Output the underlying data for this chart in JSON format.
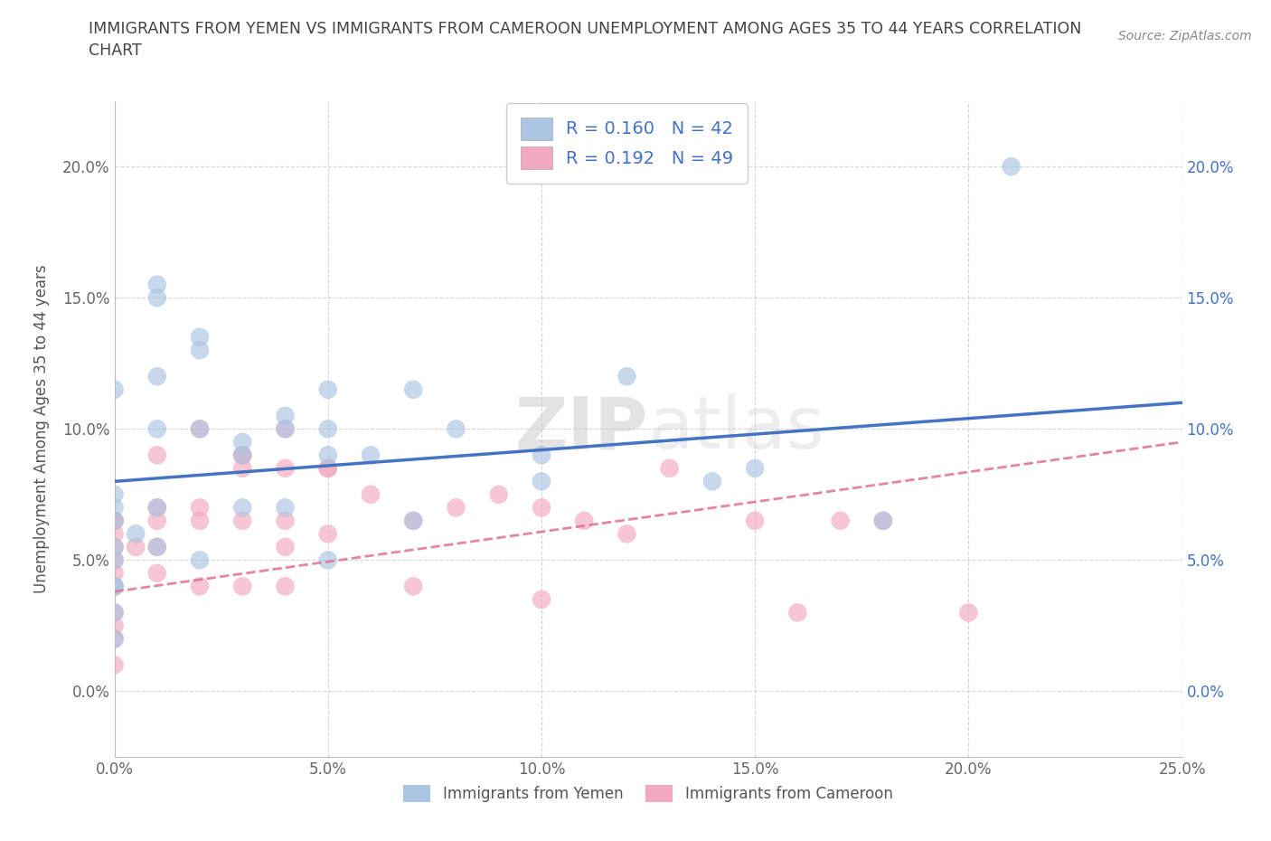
{
  "title": "IMMIGRANTS FROM YEMEN VS IMMIGRANTS FROM CAMEROON UNEMPLOYMENT AMONG AGES 35 TO 44 YEARS CORRELATION\nCHART",
  "source_text": "Source: ZipAtlas.com",
  "ylabel": "Unemployment Among Ages 35 to 44 years",
  "xlim": [
    0.0,
    0.25
  ],
  "ylim": [
    -0.025,
    0.225
  ],
  "yticks": [
    0.0,
    0.05,
    0.1,
    0.15,
    0.2
  ],
  "ytick_labels": [
    "0.0%",
    "5.0%",
    "10.0%",
    "15.0%",
    "20.0%"
  ],
  "xticks": [
    0.0,
    0.05,
    0.1,
    0.15,
    0.2,
    0.25
  ],
  "xtick_labels": [
    "0.0%",
    "5.0%",
    "10.0%",
    "15.0%",
    "20.0%",
    "25.0%"
  ],
  "yemen_color": "#aac4e2",
  "cameroon_color": "#f2a8bf",
  "yemen_R": 0.16,
  "yemen_N": 42,
  "cameroon_R": 0.192,
  "cameroon_N": 49,
  "legend_text_color": "#4472c4",
  "trend_line_color_yemen": "#4472c4",
  "trend_line_color_cameroon": "#e07090",
  "watermark_top": "ZIP",
  "watermark_bottom": "atlas",
  "yemen_x": [
    0.0,
    0.0,
    0.0,
    0.0,
    0.0,
    0.0,
    0.0,
    0.0,
    0.005,
    0.01,
    0.01,
    0.01,
    0.01,
    0.01,
    0.02,
    0.02,
    0.02,
    0.03,
    0.03,
    0.04,
    0.04,
    0.05,
    0.05,
    0.05,
    0.06,
    0.07,
    0.07,
    0.08,
    0.1,
    0.1,
    0.12,
    0.14,
    0.15,
    0.18,
    0.21,
    0.0,
    0.0,
    0.01,
    0.02,
    0.03,
    0.04,
    0.05
  ],
  "yemen_y": [
    0.075,
    0.07,
    0.065,
    0.055,
    0.05,
    0.04,
    0.04,
    0.03,
    0.06,
    0.155,
    0.15,
    0.1,
    0.07,
    0.055,
    0.135,
    0.1,
    0.05,
    0.09,
    0.07,
    0.1,
    0.07,
    0.1,
    0.09,
    0.05,
    0.09,
    0.115,
    0.065,
    0.1,
    0.09,
    0.08,
    0.12,
    0.08,
    0.085,
    0.065,
    0.2,
    0.02,
    0.115,
    0.12,
    0.13,
    0.095,
    0.105,
    0.115
  ],
  "cameroon_x": [
    0.0,
    0.0,
    0.0,
    0.0,
    0.0,
    0.0,
    0.0,
    0.0,
    0.0,
    0.0,
    0.0,
    0.01,
    0.01,
    0.01,
    0.01,
    0.01,
    0.02,
    0.02,
    0.02,
    0.02,
    0.03,
    0.03,
    0.03,
    0.03,
    0.04,
    0.04,
    0.04,
    0.04,
    0.04,
    0.05,
    0.05,
    0.06,
    0.07,
    0.07,
    0.08,
    0.09,
    0.1,
    0.1,
    0.11,
    0.12,
    0.13,
    0.15,
    0.16,
    0.17,
    0.18,
    0.2,
    0.005,
    0.03,
    0.05
  ],
  "cameroon_y": [
    0.065,
    0.065,
    0.06,
    0.055,
    0.05,
    0.045,
    0.04,
    0.03,
    0.025,
    0.02,
    0.01,
    0.09,
    0.07,
    0.065,
    0.055,
    0.045,
    0.1,
    0.07,
    0.065,
    0.04,
    0.09,
    0.085,
    0.065,
    0.04,
    0.1,
    0.085,
    0.065,
    0.055,
    0.04,
    0.085,
    0.06,
    0.075,
    0.065,
    0.04,
    0.07,
    0.075,
    0.07,
    0.035,
    0.065,
    0.06,
    0.085,
    0.065,
    0.03,
    0.065,
    0.065,
    0.03,
    0.055,
    0.09,
    0.085
  ]
}
